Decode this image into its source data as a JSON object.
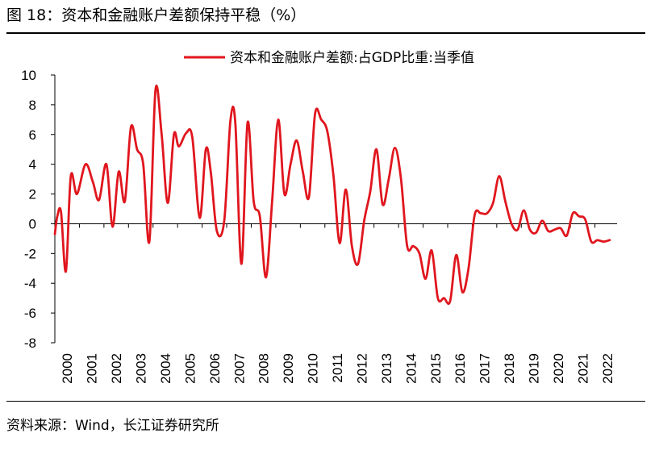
{
  "figure": {
    "title": "图 18：资本和金融账户差额保持平稳（%）",
    "source": "资料来源：Wind，长江证券研究所"
  },
  "chart_data": {
    "type": "line",
    "title": "",
    "xlabel": "",
    "ylabel": "",
    "ylim": [
      -8,
      10
    ],
    "yticks": [
      10,
      8,
      6,
      4,
      2,
      0,
      -2,
      -4,
      -6,
      -8
    ],
    "xlim": [
      2000,
      2022.9
    ],
    "xticks": [
      "2000",
      "2001",
      "2002",
      "2003",
      "2004",
      "2005",
      "2006",
      "2007",
      "2008",
      "2009",
      "2010",
      "2011",
      "2012",
      "2013",
      "2014",
      "2015",
      "2016",
      "2017",
      "2018",
      "2019",
      "2020",
      "2021",
      "2022"
    ],
    "legend": "top-right",
    "colors": {
      "line": "#E0161E",
      "axis": "#000000"
    },
    "series": [
      {
        "name": "资本和金融账户差额:占GDP比重:当季值",
        "x": [
          2000.0,
          2000.1,
          2000.25,
          2000.45,
          2000.65,
          2000.9,
          2001.25,
          2001.55,
          2001.8,
          2002.1,
          2002.35,
          2002.6,
          2002.85,
          2003.1,
          2003.35,
          2003.6,
          2003.85,
          2004.1,
          2004.35,
          2004.6,
          2004.85,
          2005.05,
          2005.35,
          2005.6,
          2005.9,
          2006.15,
          2006.35,
          2006.6,
          2006.9,
          2007.15,
          2007.35,
          2007.6,
          2007.85,
          2008.1,
          2008.35,
          2008.6,
          2008.85,
          2009.1,
          2009.35,
          2009.6,
          2009.85,
          2010.1,
          2010.35,
          2010.6,
          2010.85,
          2011.1,
          2011.35,
          2011.6,
          2011.85,
          2012.1,
          2012.35,
          2012.6,
          2012.85,
          2013.1,
          2013.35,
          2013.6,
          2013.85,
          2014.1,
          2014.35,
          2014.6,
          2014.85,
          2015.1,
          2015.35,
          2015.6,
          2015.85,
          2016.1,
          2016.35,
          2016.6,
          2016.85,
          2017.1,
          2017.35,
          2017.6,
          2017.85,
          2018.1,
          2018.35,
          2018.6,
          2018.85,
          2019.1,
          2019.35,
          2019.6,
          2019.85,
          2020.1,
          2020.35,
          2020.6,
          2020.85,
          2021.1,
          2021.35,
          2021.6,
          2021.85,
          2022.1,
          2022.35,
          2022.6
        ],
        "values": [
          -0.7,
          0.5,
          0.8,
          -3.2,
          3.2,
          2.0,
          4.0,
          2.8,
          1.6,
          4.0,
          -0.2,
          3.5,
          1.5,
          6.5,
          5.0,
          4.0,
          -1.2,
          9.0,
          6.0,
          1.4,
          6.0,
          5.2,
          6.1,
          5.8,
          0.4,
          5.0,
          3.5,
          -0.5,
          0.2,
          6.9,
          6.8,
          -2.7,
          6.8,
          1.5,
          0.5,
          -3.6,
          1.5,
          7.0,
          2.0,
          4.0,
          5.6,
          3.5,
          1.8,
          7.4,
          7.0,
          6.2,
          3.2,
          -1.3,
          2.3,
          -1.5,
          -2.7,
          0.2,
          2.2,
          5.0,
          1.3,
          3.0,
          5.1,
          3.0,
          -1.5,
          -1.5,
          -2.0,
          -3.7,
          -1.8,
          -5.0,
          -5.0,
          -5.2,
          -2.1,
          -4.6,
          -3.0,
          0.6,
          0.7,
          0.7,
          1.4,
          3.2,
          1.5,
          0.0,
          -0.4,
          0.9,
          -0.4,
          -0.6,
          0.2,
          -0.5,
          -0.4,
          -0.3,
          -0.8,
          0.7,
          0.5,
          0.3,
          -1.2,
          -1.1,
          -1.2,
          -1.1
        ]
      }
    ]
  }
}
